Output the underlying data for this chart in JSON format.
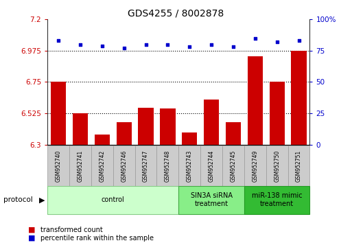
{
  "title": "GDS4255 / 8002878",
  "samples": [
    "GSM952740",
    "GSM952741",
    "GSM952742",
    "GSM952746",
    "GSM952747",
    "GSM952748",
    "GSM952743",
    "GSM952744",
    "GSM952745",
    "GSM952749",
    "GSM952750",
    "GSM952751"
  ],
  "bar_values": [
    6.75,
    6.525,
    6.37,
    6.46,
    6.565,
    6.56,
    6.385,
    6.625,
    6.46,
    6.935,
    6.75,
    6.975
  ],
  "dot_values": [
    83,
    80,
    79,
    77,
    80,
    80,
    78,
    80,
    78,
    85,
    82,
    83
  ],
  "ylim_left": [
    6.3,
    7.2
  ],
  "ylim_right": [
    0,
    100
  ],
  "yticks_left": [
    6.3,
    6.525,
    6.75,
    6.975,
    7.2
  ],
  "ytick_labels_left": [
    "6.3",
    "6.525",
    "6.75",
    "6.975",
    "7.2"
  ],
  "yticks_right": [
    0,
    25,
    50,
    75,
    100
  ],
  "ytick_labels_right": [
    "0",
    "25",
    "50",
    "75",
    "100%"
  ],
  "bar_color": "#cc0000",
  "dot_color": "#0000cc",
  "hline_values": [
    6.525,
    6.75,
    6.975
  ],
  "groups": [
    {
      "label": "control",
      "start": 0,
      "end": 6,
      "color": "#ccffcc",
      "border": "#88cc88"
    },
    {
      "label": "SIN3A siRNA\ntreatment",
      "start": 6,
      "end": 9,
      "color": "#88ee88",
      "border": "#44aa44"
    },
    {
      "label": "miR-138 mimic\ntreatment",
      "start": 9,
      "end": 12,
      "color": "#33bb33",
      "border": "#229922"
    }
  ],
  "protocol_label": "protocol",
  "legend_bar_label": "transformed count",
  "legend_dot_label": "percentile rank within the sample",
  "background_color": "#ffffff",
  "sample_box_color": "#cccccc",
  "sample_box_border": "#999999",
  "tick_label_color_left": "#cc0000",
  "tick_label_color_right": "#0000cc",
  "title_fontsize": 10,
  "bar_label_fontsize": 5.5,
  "group_label_fontsize": 7,
  "ytick_fontsize": 7.5,
  "legend_fontsize": 7
}
